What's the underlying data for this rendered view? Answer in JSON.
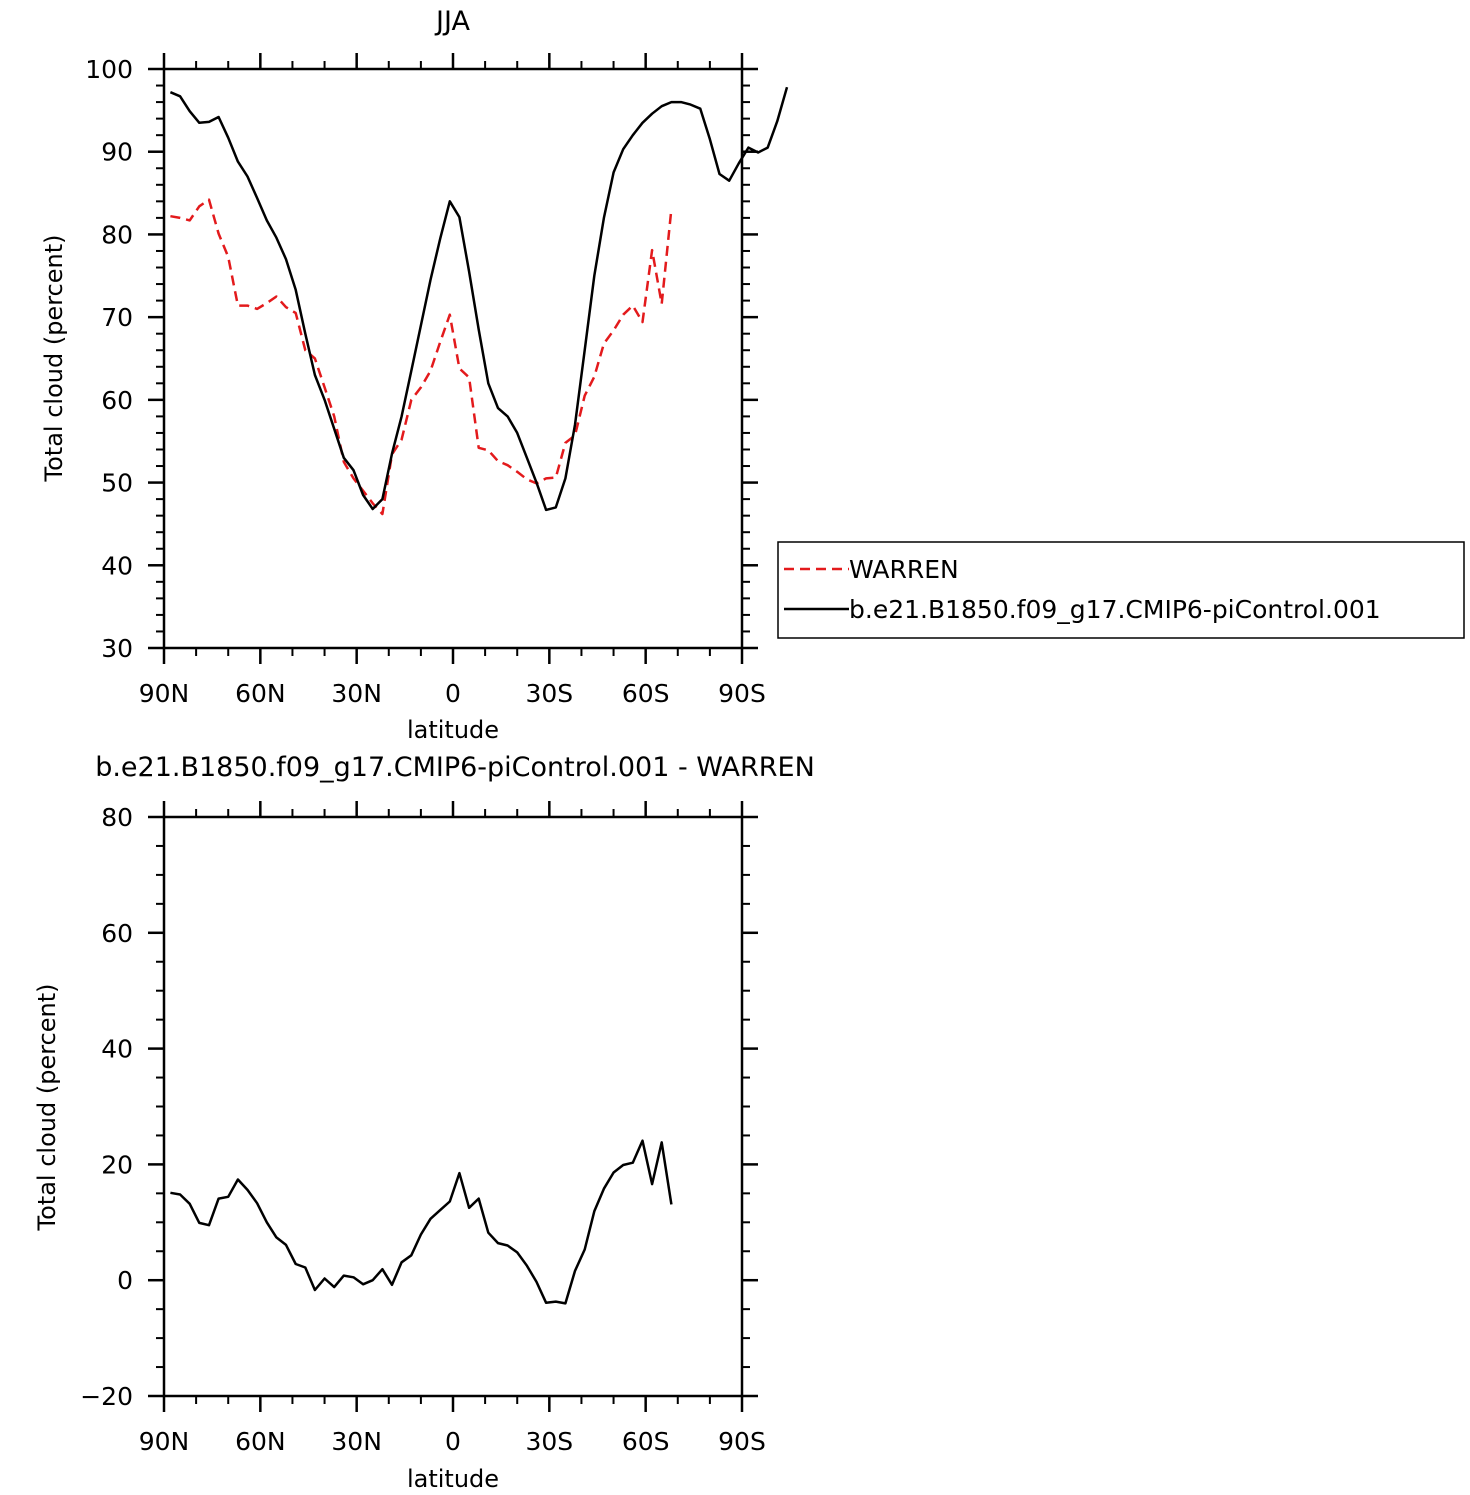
{
  "chart_data": [
    {
      "type": "line",
      "title": "JJA",
      "xlabel": "latitude",
      "ylabel": "Total cloud (percent)",
      "xlim": [
        90,
        -90
      ],
      "ylim": [
        30,
        100
      ],
      "yticks": [
        30,
        40,
        50,
        60,
        70,
        80,
        90,
        100
      ],
      "xticks": [
        {
          "value": 90,
          "label": "90N"
        },
        {
          "value": 60,
          "label": "60N"
        },
        {
          "value": 30,
          "label": "30N"
        },
        {
          "value": 0,
          "label": "0"
        },
        {
          "value": -30,
          "label": "30S"
        },
        {
          "value": -60,
          "label": "60S"
        },
        {
          "value": -90,
          "label": "90S"
        }
      ],
      "legend": "right",
      "series": [
        {
          "name": "WARREN",
          "color": "#e31a1c",
          "dash": "dashed",
          "points": [
            [
              88,
              82.2
            ],
            [
              85,
              82
            ],
            [
              82,
              81.7
            ],
            [
              79,
              83.4
            ],
            [
              76,
              84.2
            ],
            [
              73,
              80.1
            ],
            [
              70,
              77.3
            ],
            [
              67,
              71.4
            ],
            [
              64,
              71.4
            ],
            [
              61,
              71
            ],
            [
              58,
              71.7
            ],
            [
              55,
              72.5
            ],
            [
              52,
              71.2
            ],
            [
              49,
              70.5
            ],
            [
              46,
              66
            ],
            [
              43,
              65
            ],
            [
              40,
              61.5
            ],
            [
              37,
              58
            ],
            [
              34,
              52.5
            ],
            [
              31,
              50.5
            ],
            [
              28,
              49
            ],
            [
              25,
              47.5
            ],
            [
              22,
              46.2
            ],
            [
              19,
              53.4
            ],
            [
              16,
              55.2
            ],
            [
              13,
              60
            ],
            [
              10,
              61.5
            ],
            [
              7,
              63.5
            ],
            [
              4,
              67
            ],
            [
              1,
              70.3
            ],
            [
              -2,
              63.8
            ],
            [
              -5,
              62.7
            ],
            [
              -8,
              54.2
            ],
            [
              -11,
              53.9
            ],
            [
              -14,
              52.6
            ],
            [
              -17,
              52.1
            ],
            [
              -20,
              51.3
            ],
            [
              -23,
              50.4
            ],
            [
              -26,
              49.9
            ],
            [
              -29,
              50.5
            ],
            [
              -32,
              50.6
            ],
            [
              -35,
              54.8
            ],
            [
              -38,
              55.7
            ],
            [
              -41,
              60.5
            ],
            [
              -44,
              62.8
            ],
            [
              -47,
              66.8
            ],
            [
              -50,
              68.4
            ],
            [
              -53,
              70.3
            ],
            [
              -56,
              71.4
            ],
            [
              -59,
              69.4
            ],
            [
              -62,
              78.1
            ],
            [
              -65,
              71.6
            ],
            [
              -68,
              83.1
            ]
          ]
        },
        {
          "name": "b.e21.B1850.f09_g17.CMIP6-piControl.001",
          "color": "#000000",
          "dash": "solid",
          "points": [
            [
              88,
              97.2
            ],
            [
              85,
              96.7
            ],
            [
              82,
              94.9
            ],
            [
              79,
              93.5
            ],
            [
              76,
              93.6
            ],
            [
              73,
              94.2
            ],
            [
              70,
              91.7
            ],
            [
              67,
              88.8
            ],
            [
              64,
              87
            ],
            [
              61,
              84.4
            ],
            [
              58,
              81.7
            ],
            [
              55,
              79.6
            ],
            [
              52,
              77
            ],
            [
              49,
              73.3
            ],
            [
              46,
              68
            ],
            [
              43,
              63
            ],
            [
              40,
              60
            ],
            [
              37,
              56.5
            ],
            [
              34,
              53
            ],
            [
              31,
              51.5
            ],
            [
              28,
              48.5
            ],
            [
              25,
              46.8
            ],
            [
              22,
              48
            ],
            [
              19,
              53.5
            ],
            [
              16,
              58
            ],
            [
              13,
              63.5
            ],
            [
              10,
              69
            ],
            [
              7,
              74.5
            ],
            [
              4,
              79.5
            ],
            [
              1,
              84
            ],
            [
              -2,
              82.1
            ],
            [
              -5,
              75.5
            ],
            [
              -8,
              68.5
            ],
            [
              -11,
              62
            ],
            [
              -14,
              59
            ],
            [
              -17,
              58
            ],
            [
              -20,
              56
            ],
            [
              -23,
              53
            ],
            [
              -26,
              50
            ],
            [
              -29,
              46.7
            ],
            [
              -32,
              47
            ],
            [
              -35,
              50.5
            ],
            [
              -38,
              57
            ],
            [
              -41,
              66
            ],
            [
              -44,
              75
            ],
            [
              -47,
              82
            ],
            [
              -50,
              87.5
            ],
            [
              -53,
              90.3
            ],
            [
              -56,
              92
            ],
            [
              -59,
              93.5
            ],
            [
              -62,
              94.6
            ],
            [
              -65,
              95.5
            ],
            [
              -68,
              96
            ],
            [
              -71,
              96
            ],
            [
              -74,
              95.7
            ],
            [
              -77,
              95.2
            ],
            [
              -80,
              91.5
            ],
            [
              -83,
              87.3
            ],
            [
              -86,
              86.5
            ],
            [
              -89,
              88.6
            ],
            [
              -92,
              90.5
            ],
            [
              -95,
              89.9
            ],
            [
              -98,
              90.5
            ],
            [
              -101,
              93.7
            ],
            [
              -104,
              97.8
            ]
          ]
        }
      ]
    },
    {
      "type": "line",
      "title": "b.e21.B1850.f09_g17.CMIP6-piControl.001 - WARREN",
      "xlabel": "latitude",
      "ylabel": "Total cloud (percent)",
      "xlim": [
        90,
        -90
      ],
      "ylim": [
        -20,
        80
      ],
      "yticks": [
        -20,
        0,
        20,
        40,
        60,
        80
      ],
      "ytick_labels": [
        "−20",
        "0",
        "20",
        "40",
        "60",
        "80"
      ],
      "xticks": [
        {
          "value": 90,
          "label": "90N"
        },
        {
          "value": 60,
          "label": "60N"
        },
        {
          "value": 30,
          "label": "30N"
        },
        {
          "value": 0,
          "label": "0"
        },
        {
          "value": -30,
          "label": "30S"
        },
        {
          "value": -60,
          "label": "60S"
        },
        {
          "value": -90,
          "label": "90S"
        }
      ],
      "series": [
        {
          "color": "#000000",
          "dash": "solid",
          "points": [
            [
              88,
              15.1
            ],
            [
              85,
              14.8
            ],
            [
              82,
              13.2
            ],
            [
              79,
              9.9
            ],
            [
              76,
              9.5
            ],
            [
              73,
              14.1
            ],
            [
              70,
              14.4
            ],
            [
              67,
              17.4
            ],
            [
              64,
              15.6
            ],
            [
              61,
              13.3
            ],
            [
              58,
              10
            ],
            [
              55,
              7.4
            ],
            [
              52,
              6.1
            ],
            [
              49,
              2.8
            ],
            [
              46,
              2.2
            ],
            [
              43,
              -1.7
            ],
            [
              40,
              0.3
            ],
            [
              37,
              -1.2
            ],
            [
              34,
              0.8
            ],
            [
              31,
              0.5
            ],
            [
              28,
              -0.7
            ],
            [
              25,
              0
            ],
            [
              22,
              1.9
            ],
            [
              19,
              -0.8
            ],
            [
              16,
              3.1
            ],
            [
              13,
              4.3
            ],
            [
              10,
              7.9
            ],
            [
              7,
              10.6
            ],
            [
              4,
              12.1
            ],
            [
              1,
              13.6
            ],
            [
              -2,
              18.5
            ],
            [
              -5,
              12.5
            ],
            [
              -8,
              14.1
            ],
            [
              -11,
              8.2
            ],
            [
              -14,
              6.4
            ],
            [
              -17,
              6
            ],
            [
              -20,
              4.8
            ],
            [
              -23,
              2.5
            ],
            [
              -26,
              -0.3
            ],
            [
              -29,
              -3.9
            ],
            [
              -32,
              -3.7
            ],
            [
              -35,
              -4
            ],
            [
              -38,
              1.6
            ],
            [
              -41,
              5.3
            ],
            [
              -44,
              11.9
            ],
            [
              -47,
              15.8
            ],
            [
              -50,
              18.6
            ],
            [
              -53,
              19.9
            ],
            [
              -56,
              20.3
            ],
            [
              -59,
              24.1
            ],
            [
              -62,
              16.6
            ],
            [
              -65,
              23.8
            ],
            [
              -68,
              13.1
            ]
          ]
        }
      ]
    }
  ]
}
